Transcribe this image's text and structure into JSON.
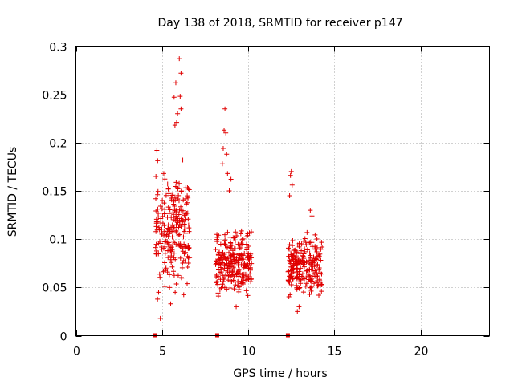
{
  "chart_data": {
    "type": "scatter",
    "title": "Day 138 of 2018, SRMTID for receiver p147",
    "xlabel": "GPS time / hours",
    "ylabel": "SRMTID / TECUs",
    "xlim": [
      0,
      24
    ],
    "ylim": [
      0,
      0.3
    ],
    "xticks": [
      0,
      5,
      10,
      15,
      20
    ],
    "xtick_labels": [
      "0",
      "5",
      "10",
      "15",
      "20"
    ],
    "yticks": [
      0,
      0.05,
      0.1,
      0.15,
      0.2,
      0.25,
      0.3
    ],
    "ytick_labels": [
      "0",
      "0.05",
      "0.1",
      "0.15",
      "0.2",
      "0.25",
      "0.3"
    ],
    "grid": true,
    "marker": "+",
    "series_color": "#e00000",
    "baseline_markers_x": [
      4.6,
      8.2,
      12.3
    ],
    "series": [
      {
        "name": "SRMTID",
        "clusters": [
          {
            "x_range": [
              4.6,
              6.6
            ],
            "y_range": [
              0.03,
              0.185
            ],
            "count": 230,
            "seed": 11
          },
          {
            "x_range": [
              8.1,
              10.2
            ],
            "y_range": [
              0.03,
              0.12
            ],
            "count": 260,
            "seed": 23
          },
          {
            "x_range": [
              12.3,
              14.3
            ],
            "y_range": [
              0.03,
              0.11
            ],
            "count": 230,
            "seed": 37
          }
        ],
        "points": [
          [
            6.0,
            0.287
          ],
          [
            6.1,
            0.272
          ],
          [
            5.8,
            0.262
          ],
          [
            5.7,
            0.247
          ],
          [
            6.05,
            0.248
          ],
          [
            6.1,
            0.235
          ],
          [
            5.9,
            0.23
          ],
          [
            5.85,
            0.221
          ],
          [
            5.75,
            0.218
          ],
          [
            4.7,
            0.192
          ],
          [
            6.2,
            0.182
          ],
          [
            5.1,
            0.168
          ],
          [
            8.65,
            0.235
          ],
          [
            8.6,
            0.213
          ],
          [
            8.7,
            0.21
          ],
          [
            8.55,
            0.194
          ],
          [
            8.75,
            0.188
          ],
          [
            8.5,
            0.178
          ],
          [
            8.8,
            0.168
          ],
          [
            9.0,
            0.162
          ],
          [
            8.9,
            0.15
          ],
          [
            12.5,
            0.17
          ],
          [
            12.45,
            0.166
          ],
          [
            12.55,
            0.156
          ],
          [
            12.4,
            0.145
          ],
          [
            13.6,
            0.13
          ],
          [
            13.7,
            0.124
          ],
          [
            4.9,
            0.018
          ],
          [
            4.8,
            0.045
          ],
          [
            5.5,
            0.033
          ],
          [
            12.85,
            0.025
          ],
          [
            12.95,
            0.03
          ],
          [
            9.3,
            0.03
          ]
        ]
      }
    ]
  }
}
